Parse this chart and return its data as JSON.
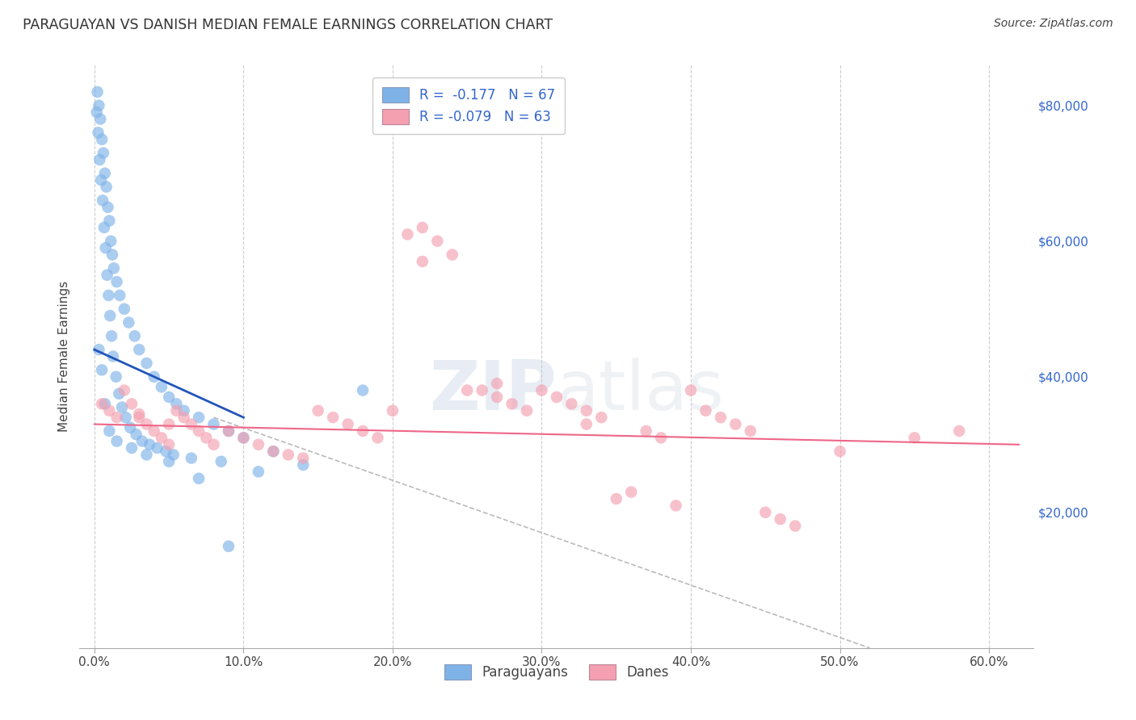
{
  "title": "PARAGUAYAN VS DANISH MEDIAN FEMALE EARNINGS CORRELATION CHART",
  "source": "Source: ZipAtlas.com",
  "xlabel_ticks": [
    "0.0%",
    "10.0%",
    "20.0%",
    "30.0%",
    "40.0%",
    "50.0%",
    "60.0%"
  ],
  "xlabel_vals": [
    0.0,
    10.0,
    20.0,
    30.0,
    40.0,
    50.0,
    60.0
  ],
  "ylabel": "Median Female Earnings",
  "ylabel_right_ticks": [
    "$80,000",
    "$60,000",
    "$40,000",
    "$20,000"
  ],
  "ylabel_right_vals": [
    80000,
    60000,
    40000,
    20000
  ],
  "ylim": [
    0,
    86000
  ],
  "xlim": [
    -1.0,
    63
  ],
  "legend_blue_label": "R =  -0.177   N = 67",
  "legend_pink_label": "R = -0.079   N = 63",
  "blue_color": "#7FB3E8",
  "pink_color": "#F4A0B0",
  "blue_line_color": "#2255BB",
  "pink_line_color": "#EE6688",
  "grid_color": "#CCCCCC",
  "background_color": "#FFFFFF",
  "par_x": [
    0.2,
    0.3,
    0.4,
    0.5,
    0.6,
    0.7,
    0.8,
    0.9,
    1.0,
    1.1,
    1.2,
    1.3,
    1.5,
    1.7,
    2.0,
    2.3,
    2.7,
    3.0,
    3.5,
    4.0,
    4.5,
    5.0,
    5.5,
    6.0,
    7.0,
    8.0,
    9.0,
    10.0,
    12.0,
    14.0,
    0.15,
    0.25,
    0.35,
    0.45,
    0.55,
    0.65,
    0.75,
    0.85,
    0.95,
    1.05,
    1.15,
    1.25,
    1.45,
    1.65,
    1.85,
    2.1,
    2.4,
    2.8,
    3.2,
    3.7,
    4.2,
    4.8,
    5.3,
    6.5,
    8.5,
    11.0,
    18.0,
    0.3,
    0.5,
    0.7,
    1.0,
    1.5,
    2.5,
    3.5,
    5.0,
    7.0,
    9.0
  ],
  "par_y": [
    82000,
    80000,
    78000,
    75000,
    73000,
    70000,
    68000,
    65000,
    63000,
    60000,
    58000,
    56000,
    54000,
    52000,
    50000,
    48000,
    46000,
    44000,
    42000,
    40000,
    38500,
    37000,
    36000,
    35000,
    34000,
    33000,
    32000,
    31000,
    29000,
    27000,
    79000,
    76000,
    72000,
    69000,
    66000,
    62000,
    59000,
    55000,
    52000,
    49000,
    46000,
    43000,
    40000,
    37500,
    35500,
    34000,
    32500,
    31500,
    30500,
    30000,
    29500,
    29000,
    28500,
    28000,
    27500,
    26000,
    38000,
    44000,
    41000,
    36000,
    32000,
    30500,
    29500,
    28500,
    27500,
    25000,
    15000
  ],
  "dan_x": [
    0.5,
    1.0,
    1.5,
    2.0,
    2.5,
    3.0,
    3.5,
    4.0,
    4.5,
    5.0,
    5.5,
    6.0,
    6.5,
    7.0,
    7.5,
    8.0,
    9.0,
    10.0,
    11.0,
    12.0,
    13.0,
    14.0,
    15.0,
    16.0,
    17.0,
    18.0,
    19.0,
    20.0,
    21.0,
    22.0,
    23.0,
    24.0,
    25.0,
    26.0,
    27.0,
    28.0,
    29.0,
    30.0,
    31.0,
    32.0,
    33.0,
    34.0,
    35.0,
    36.0,
    37.0,
    38.0,
    39.0,
    40.0,
    41.0,
    42.0,
    43.0,
    44.0,
    45.0,
    46.0,
    47.0,
    50.0,
    55.0,
    58.0,
    3.0,
    5.0,
    22.0,
    27.0,
    33.0
  ],
  "dan_y": [
    36000,
    35000,
    34000,
    38000,
    36000,
    34500,
    33000,
    32000,
    31000,
    30000,
    35000,
    34000,
    33000,
    32000,
    31000,
    30000,
    32000,
    31000,
    30000,
    29000,
    28500,
    28000,
    35000,
    34000,
    33000,
    32000,
    31000,
    35000,
    61000,
    62000,
    60000,
    58000,
    38000,
    38000,
    37000,
    36000,
    35000,
    38000,
    37000,
    36000,
    35000,
    34000,
    22000,
    23000,
    32000,
    31000,
    21000,
    38000,
    35000,
    34000,
    33000,
    32000,
    20000,
    19000,
    18000,
    29000,
    31000,
    32000,
    34000,
    33000,
    57000,
    39000,
    33000
  ],
  "blue_line_x": [
    0.0,
    10.0
  ],
  "blue_line_y": [
    44000,
    34000
  ],
  "pink_line_x": [
    0.0,
    62.0
  ],
  "pink_line_y": [
    33000,
    30000
  ],
  "gray_line_x": [
    8.0,
    52.0
  ],
  "gray_line_y": [
    34000,
    0
  ]
}
